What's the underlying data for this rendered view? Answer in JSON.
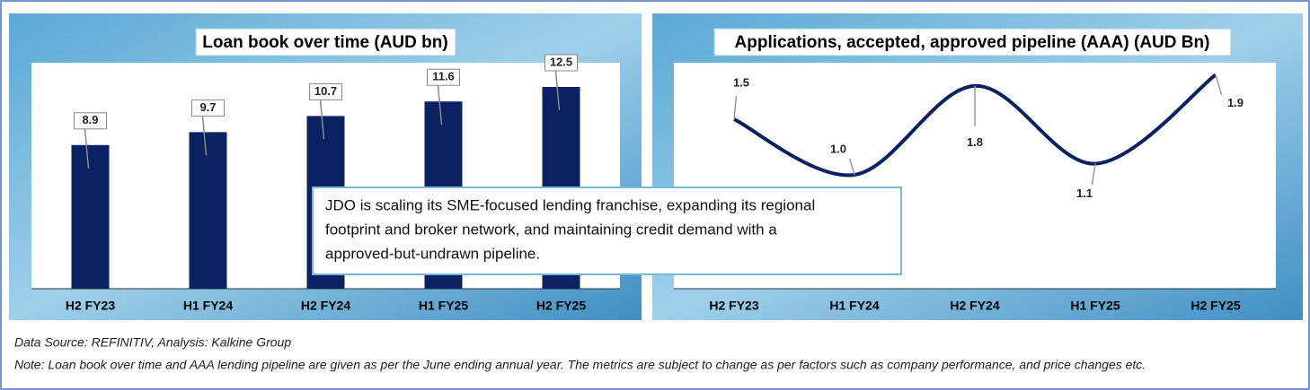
{
  "chart_data": [
    {
      "type": "bar",
      "title": "Loan book over time (AUD bn)",
      "categories": [
        "H2 FY23",
        "H1 FY24",
        "H2 FY24",
        "H1 FY25",
        "H2 FY25"
      ],
      "values": [
        8.9,
        9.7,
        10.7,
        11.6,
        12.5
      ],
      "color": "#0b2161",
      "ylim": [
        0,
        14
      ]
    },
    {
      "type": "line",
      "title": "Applications, accepted, approved pipeline (AAA) (AUD Bn)",
      "categories": [
        "H2 FY23",
        "H1 FY24",
        "H2 FY24",
        "H1 FY25",
        "H2 FY25"
      ],
      "values": [
        1.5,
        1.0,
        1.8,
        1.1,
        1.9
      ],
      "value_labels": [
        "1.5",
        "1.0",
        "1.8",
        "1.1",
        "1.9"
      ],
      "color": "#0b2161",
      "ylim": [
        0,
        2
      ]
    }
  ],
  "annotation": [
    "JDO is scaling its SME-focused lending franchise, expanding its regional",
    "footprint and broker network, and maintaining  credit demand with a",
    "approved-but-undrawn pipeline."
  ],
  "footer": [
    "Data Source: REFINITIV, Analysis: Kalkine Group",
    "Note: Loan book over time and AAA lending pipeline are given as per the June ending annual year. The metrics are subject to change as per factors such as company performance, and price changes etc."
  ]
}
